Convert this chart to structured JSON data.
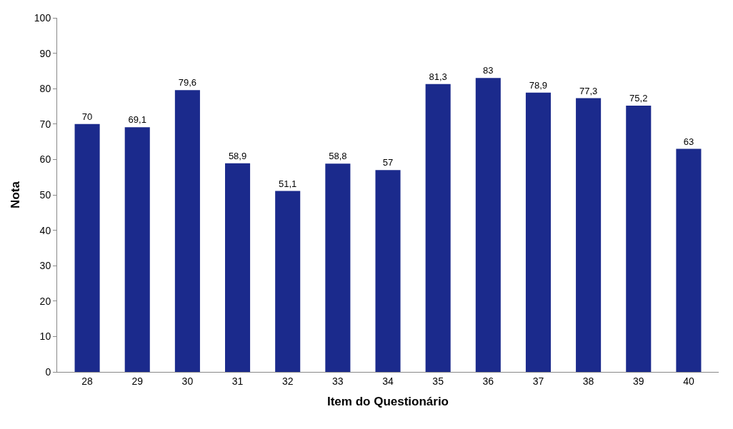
{
  "chart_data": {
    "type": "bar",
    "xlabel": "Item do Questionário",
    "ylabel": "Nota",
    "categories": [
      "28",
      "29",
      "30",
      "31",
      "32",
      "33",
      "34",
      "35",
      "36",
      "37",
      "38",
      "39",
      "40"
    ],
    "values": [
      70,
      69.1,
      79.6,
      58.9,
      51.1,
      58.8,
      57,
      81.3,
      83,
      78.9,
      77.3,
      75.2,
      63
    ],
    "value_labels": [
      "70",
      "69,1",
      "79,6",
      "58,9",
      "51,1",
      "58,8",
      "57",
      "81,3",
      "83",
      "78,9",
      "77,3",
      "75,2",
      "63"
    ],
    "color": "#1b2a8c",
    "ylim": [
      0,
      100
    ],
    "yticks": [
      0,
      10,
      20,
      30,
      40,
      50,
      60,
      70,
      80,
      90,
      100
    ]
  }
}
